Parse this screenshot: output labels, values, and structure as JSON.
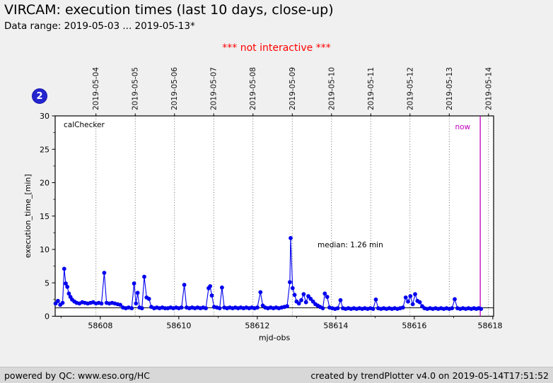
{
  "header": {
    "title": "VIRCAM: execution times (last 10 days, close-up)",
    "subtitle": "Data range: 2019-05-03 ... 2019-05-13*",
    "notice": "*** not interactive ***"
  },
  "badge": {
    "label": "2"
  },
  "footer": {
    "left": "powered by QC: www.eso.org/HC",
    "right": "created by trendPlotter v4.0 on 2019-05-14T17:51:52"
  },
  "colors": {
    "data_blue": "#0000ee",
    "now_magenta": "#c000c0",
    "notice_red": "#ff0000",
    "badge_blue": "#2525cf",
    "median_black": "#000000",
    "grid_gray": "#444444"
  },
  "chart_data": {
    "type": "line",
    "title": "VIRCAM: execution times (last 10 days, close-up)",
    "xlabel": "mjd-obs",
    "ylabel": "execution_time_[min]",
    "xlim": [
      58606.85,
      58618.02
    ],
    "ylim": [
      0,
      30
    ],
    "x_major_ticks": [
      58608,
      58610,
      58612,
      58614,
      58616,
      58618
    ],
    "x_minor_ticks": [
      58607,
      58609,
      58611,
      58613,
      58615,
      58617
    ],
    "y_major_ticks": [
      0,
      5,
      10,
      15,
      20,
      25,
      30
    ],
    "y_minor_step": 2.5,
    "grid": "vertical-dotted-on-top-axis-dates",
    "legend_position": "none",
    "top_axis": {
      "labels": [
        "2019-05-04",
        "2019-05-05",
        "2019-05-06",
        "2019-05-07",
        "2019-05-08",
        "2019-05-09",
        "2019-05-10",
        "2019-05-11",
        "2019-05-12",
        "2019-05-13",
        "2019-05-14"
      ],
      "mjd": [
        58607.89,
        58608.89,
        58609.89,
        58610.89,
        58611.89,
        58612.89,
        58613.89,
        58614.89,
        58615.89,
        58616.89,
        58617.89
      ]
    },
    "series_label": "calChecker",
    "median": {
      "value": 1.26,
      "label": "median: 1.26 min"
    },
    "now": {
      "mjd": 58617.68,
      "label": "now"
    },
    "points": [
      [
        58606.86,
        1.9
      ],
      [
        58606.92,
        2.3
      ],
      [
        58606.98,
        1.7
      ],
      [
        58607.04,
        2.0
      ],
      [
        58607.08,
        7.1
      ],
      [
        58607.12,
        4.9
      ],
      [
        58607.16,
        4.4
      ],
      [
        58607.2,
        3.4
      ],
      [
        58607.24,
        2.9
      ],
      [
        58607.28,
        2.5
      ],
      [
        58607.34,
        2.2
      ],
      [
        58607.4,
        2.0
      ],
      [
        58607.47,
        1.9
      ],
      [
        58607.54,
        2.1
      ],
      [
        58607.61,
        2.0
      ],
      [
        58607.68,
        1.9
      ],
      [
        58607.75,
        2.0
      ],
      [
        58607.82,
        2.1
      ],
      [
        58607.89,
        1.9
      ],
      [
        58607.96,
        2.0
      ],
      [
        58608.03,
        1.9
      ],
      [
        58608.1,
        6.5
      ],
      [
        58608.16,
        2.0
      ],
      [
        58608.23,
        1.9
      ],
      [
        58608.3,
        2.0
      ],
      [
        58608.37,
        1.9
      ],
      [
        58608.44,
        1.8
      ],
      [
        58608.51,
        1.7
      ],
      [
        58608.58,
        1.3
      ],
      [
        58608.65,
        1.2
      ],
      [
        58608.72,
        1.3
      ],
      [
        58608.8,
        1.2
      ],
      [
        58608.86,
        4.9
      ],
      [
        58608.91,
        1.9
      ],
      [
        58608.95,
        3.5
      ],
      [
        58609.0,
        1.3
      ],
      [
        58609.06,
        1.2
      ],
      [
        58609.12,
        5.9
      ],
      [
        58609.18,
        2.8
      ],
      [
        58609.24,
        2.6
      ],
      [
        58609.3,
        1.4
      ],
      [
        58609.37,
        1.2
      ],
      [
        58609.44,
        1.3
      ],
      [
        58609.51,
        1.2
      ],
      [
        58609.58,
        1.3
      ],
      [
        58609.65,
        1.2
      ],
      [
        58609.72,
        1.2
      ],
      [
        58609.79,
        1.3
      ],
      [
        58609.86,
        1.2
      ],
      [
        58609.93,
        1.3
      ],
      [
        58610.0,
        1.2
      ],
      [
        58610.07,
        1.3
      ],
      [
        58610.14,
        4.7
      ],
      [
        58610.2,
        1.3
      ],
      [
        58610.27,
        1.2
      ],
      [
        58610.34,
        1.3
      ],
      [
        58610.41,
        1.2
      ],
      [
        58610.48,
        1.3
      ],
      [
        58610.55,
        1.2
      ],
      [
        58610.62,
        1.3
      ],
      [
        58610.69,
        1.2
      ],
      [
        58610.76,
        4.2
      ],
      [
        58610.8,
        4.5
      ],
      [
        58610.84,
        3.1
      ],
      [
        58610.9,
        1.4
      ],
      [
        58610.97,
        1.3
      ],
      [
        58611.04,
        1.2
      ],
      [
        58611.1,
        4.3
      ],
      [
        58611.16,
        1.3
      ],
      [
        58611.23,
        1.2
      ],
      [
        58611.3,
        1.3
      ],
      [
        58611.37,
        1.2
      ],
      [
        58611.44,
        1.3
      ],
      [
        58611.51,
        1.2
      ],
      [
        58611.58,
        1.3
      ],
      [
        58611.65,
        1.2
      ],
      [
        58611.72,
        1.3
      ],
      [
        58611.79,
        1.2
      ],
      [
        58611.86,
        1.3
      ],
      [
        58611.93,
        1.2
      ],
      [
        58612.0,
        1.3
      ],
      [
        58612.08,
        3.6
      ],
      [
        58612.14,
        1.6
      ],
      [
        58612.2,
        1.3
      ],
      [
        58612.27,
        1.2
      ],
      [
        58612.34,
        1.3
      ],
      [
        58612.41,
        1.2
      ],
      [
        58612.48,
        1.3
      ],
      [
        58612.55,
        1.2
      ],
      [
        58612.62,
        1.3
      ],
      [
        58612.69,
        1.4
      ],
      [
        58612.76,
        1.5
      ],
      [
        58612.83,
        5.1
      ],
      [
        58612.85,
        11.7
      ],
      [
        58612.9,
        4.2
      ],
      [
        58612.95,
        3.2
      ],
      [
        58613.0,
        2.2
      ],
      [
        58613.06,
        1.9
      ],
      [
        58613.12,
        2.4
      ],
      [
        58613.18,
        3.3
      ],
      [
        58613.24,
        2.1
      ],
      [
        58613.3,
        3.0
      ],
      [
        58613.36,
        2.6
      ],
      [
        58613.42,
        2.2
      ],
      [
        58613.48,
        1.8
      ],
      [
        58613.54,
        1.6
      ],
      [
        58613.6,
        1.4
      ],
      [
        58613.67,
        1.2
      ],
      [
        58613.72,
        3.4
      ],
      [
        58613.78,
        2.9
      ],
      [
        58613.84,
        1.3
      ],
      [
        58613.91,
        1.2
      ],
      [
        58613.98,
        1.1
      ],
      [
        58614.05,
        1.2
      ],
      [
        58614.12,
        2.4
      ],
      [
        58614.18,
        1.2
      ],
      [
        58614.25,
        1.1
      ],
      [
        58614.32,
        1.2
      ],
      [
        58614.39,
        1.1
      ],
      [
        58614.46,
        1.2
      ],
      [
        58614.53,
        1.1
      ],
      [
        58614.6,
        1.2
      ],
      [
        58614.67,
        1.1
      ],
      [
        58614.74,
        1.2
      ],
      [
        58614.81,
        1.1
      ],
      [
        58614.88,
        1.2
      ],
      [
        58614.95,
        1.1
      ],
      [
        58615.02,
        2.5
      ],
      [
        58615.08,
        1.2
      ],
      [
        58615.15,
        1.1
      ],
      [
        58615.22,
        1.2
      ],
      [
        58615.29,
        1.1
      ],
      [
        58615.36,
        1.2
      ],
      [
        58615.43,
        1.1
      ],
      [
        58615.5,
        1.2
      ],
      [
        58615.57,
        1.1
      ],
      [
        58615.64,
        1.2
      ],
      [
        58615.71,
        1.3
      ],
      [
        58615.78,
        2.8
      ],
      [
        58615.84,
        2.2
      ],
      [
        58615.9,
        3.0
      ],
      [
        58615.96,
        1.8
      ],
      [
        58616.02,
        3.3
      ],
      [
        58616.08,
        2.3
      ],
      [
        58616.14,
        2.1
      ],
      [
        58616.2,
        1.5
      ],
      [
        58616.26,
        1.2
      ],
      [
        58616.33,
        1.1
      ],
      [
        58616.4,
        1.2
      ],
      [
        58616.47,
        1.1
      ],
      [
        58616.54,
        1.2
      ],
      [
        58616.61,
        1.1
      ],
      [
        58616.68,
        1.2
      ],
      [
        58616.75,
        1.1
      ],
      [
        58616.82,
        1.2
      ],
      [
        58616.89,
        1.1
      ],
      [
        58616.96,
        1.2
      ],
      [
        58617.03,
        2.55
      ],
      [
        58617.1,
        1.2
      ],
      [
        58617.17,
        1.1
      ],
      [
        58617.24,
        1.2
      ],
      [
        58617.31,
        1.1
      ],
      [
        58617.38,
        1.2
      ],
      [
        58617.45,
        1.1
      ],
      [
        58617.52,
        1.2
      ],
      [
        58617.58,
        1.1
      ],
      [
        58617.64,
        1.2
      ],
      [
        58617.7,
        1.1
      ]
    ]
  }
}
